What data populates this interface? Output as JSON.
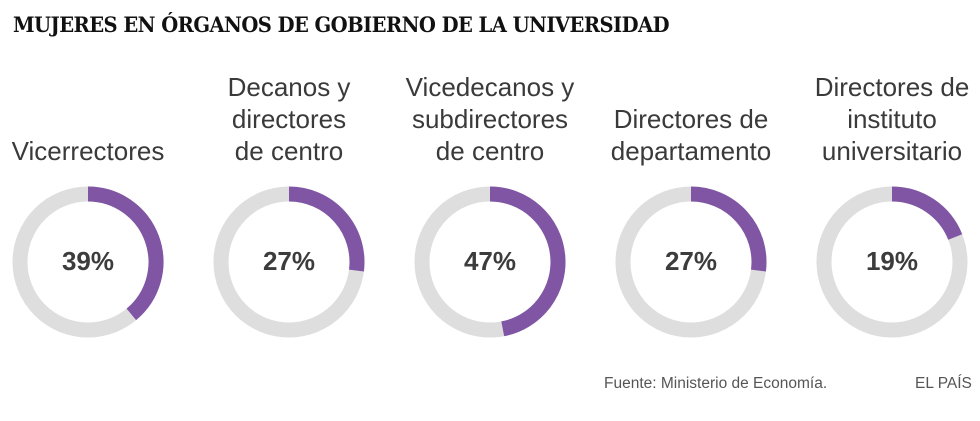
{
  "title": "MUJERES EN ÓRGANOS DE GOBIERNO DE LA UNIVERSIDAD",
  "source": "Fuente: Ministerio de Economía.",
  "credit": "EL PAÍS",
  "colors": {
    "accent": "#7f55a4",
    "track": "#dedede",
    "text": "#3a3a3a"
  },
  "chart_data": [
    {
      "type": "pie",
      "label": [
        "Vicerrectores"
      ],
      "value": 39,
      "value_label": "39%"
    },
    {
      "type": "pie",
      "label": [
        "Decanos y",
        "directores",
        "de centro"
      ],
      "value": 27,
      "value_label": "27%"
    },
    {
      "type": "pie",
      "label": [
        "Vicedecanos y",
        "subdirectores",
        "de centro"
      ],
      "value": 47,
      "value_label": "47%"
    },
    {
      "type": "pie",
      "label": [
        "Directores de",
        "departamento"
      ],
      "value": 27,
      "value_label": "27%"
    },
    {
      "type": "pie",
      "label": [
        "Directores de",
        "instituto",
        "universitario"
      ],
      "value": 19,
      "value_label": "19%"
    }
  ]
}
